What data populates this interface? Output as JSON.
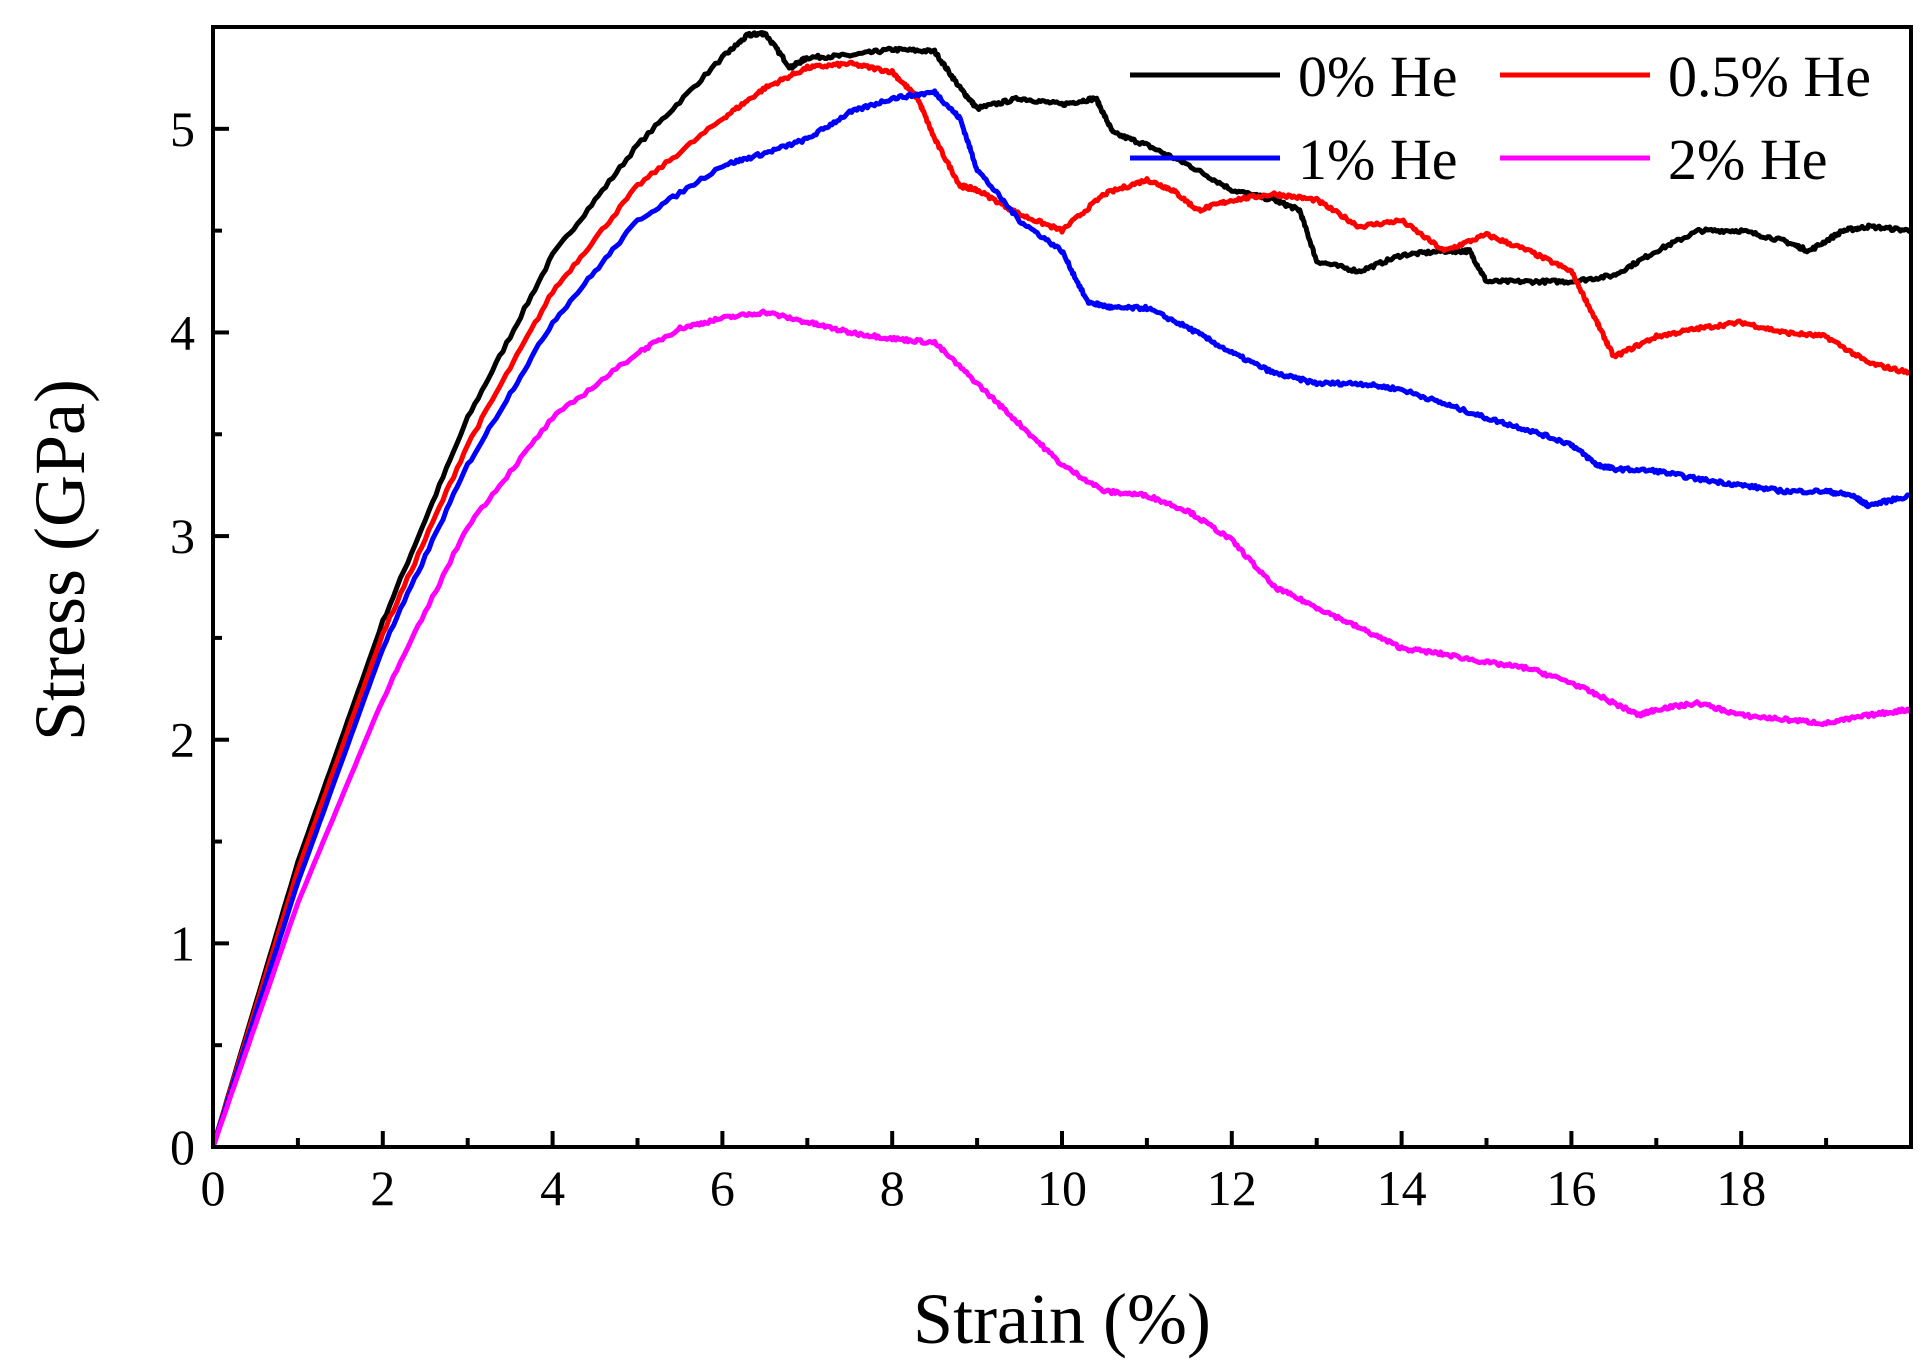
{
  "chart_data": {
    "type": "line",
    "title": "",
    "xlabel": "Strain (%)",
    "ylabel": "Stress (GPa)",
    "xlim": [
      0,
      20
    ],
    "ylim": [
      0,
      5.5
    ],
    "xticks": [
      0,
      2,
      4,
      6,
      8,
      10,
      12,
      14,
      16,
      18
    ],
    "yticks": [
      0,
      1,
      2,
      3,
      4,
      5
    ],
    "grid": false,
    "legend_position": "top-right",
    "series": [
      {
        "name": "0% He",
        "color": "#000000",
        "points": [
          [
            0,
            0
          ],
          [
            1,
            1.4
          ],
          [
            2,
            2.58
          ],
          [
            3,
            3.58
          ],
          [
            4,
            4.38
          ],
          [
            5,
            4.92
          ],
          [
            6,
            5.35
          ],
          [
            6.3,
            5.46
          ],
          [
            6.5,
            5.47
          ],
          [
            6.8,
            5.3
          ],
          [
            7.0,
            5.35
          ],
          [
            7.5,
            5.36
          ],
          [
            8.0,
            5.39
          ],
          [
            8.5,
            5.38
          ],
          [
            8.8,
            5.2
          ],
          [
            9.0,
            5.1
          ],
          [
            9.5,
            5.15
          ],
          [
            10.0,
            5.12
          ],
          [
            10.4,
            5.15
          ],
          [
            10.6,
            4.98
          ],
          [
            11.0,
            4.92
          ],
          [
            11.5,
            4.82
          ],
          [
            12.0,
            4.7
          ],
          [
            12.5,
            4.65
          ],
          [
            12.8,
            4.6
          ],
          [
            13.0,
            4.35
          ],
          [
            13.5,
            4.3
          ],
          [
            14.0,
            4.38
          ],
          [
            14.5,
            4.4
          ],
          [
            14.8,
            4.4
          ],
          [
            15.0,
            4.25
          ],
          [
            15.5,
            4.25
          ],
          [
            16.0,
            4.25
          ],
          [
            16.5,
            4.28
          ],
          [
            17.0,
            4.4
          ],
          [
            17.5,
            4.5
          ],
          [
            18.0,
            4.5
          ],
          [
            18.5,
            4.45
          ],
          [
            18.8,
            4.4
          ],
          [
            19.2,
            4.5
          ],
          [
            19.5,
            4.52
          ],
          [
            20.0,
            4.5
          ]
        ]
      },
      {
        "name": "0.5% He",
        "color": "#ff0000",
        "points": [
          [
            0,
            0
          ],
          [
            1,
            1.36
          ],
          [
            2,
            2.52
          ],
          [
            3,
            3.45
          ],
          [
            4,
            4.2
          ],
          [
            5,
            4.72
          ],
          [
            6,
            5.05
          ],
          [
            6.5,
            5.2
          ],
          [
            7.0,
            5.3
          ],
          [
            7.5,
            5.32
          ],
          [
            8.0,
            5.28
          ],
          [
            8.3,
            5.15
          ],
          [
            8.5,
            4.95
          ],
          [
            8.8,
            4.72
          ],
          [
            9.0,
            4.7
          ],
          [
            9.5,
            4.58
          ],
          [
            10.0,
            4.5
          ],
          [
            10.5,
            4.68
          ],
          [
            11.0,
            4.75
          ],
          [
            11.3,
            4.7
          ],
          [
            11.6,
            4.6
          ],
          [
            12.0,
            4.65
          ],
          [
            12.5,
            4.68
          ],
          [
            13.0,
            4.65
          ],
          [
            13.5,
            4.52
          ],
          [
            14.0,
            4.55
          ],
          [
            14.5,
            4.4
          ],
          [
            15.0,
            4.48
          ],
          [
            15.5,
            4.4
          ],
          [
            16.0,
            4.3
          ],
          [
            16.3,
            4.05
          ],
          [
            16.5,
            3.88
          ],
          [
            17.0,
            3.98
          ],
          [
            17.5,
            4.02
          ],
          [
            18.0,
            4.05
          ],
          [
            18.5,
            4.0
          ],
          [
            19.0,
            3.98
          ],
          [
            19.5,
            3.85
          ],
          [
            20.0,
            3.8
          ]
        ]
      },
      {
        "name": "1% He",
        "color": "#0000ff",
        "points": [
          [
            0,
            0
          ],
          [
            1,
            1.3
          ],
          [
            2,
            2.45
          ],
          [
            3,
            3.35
          ],
          [
            4,
            4.05
          ],
          [
            5,
            4.55
          ],
          [
            6,
            4.82
          ],
          [
            6.5,
            4.88
          ],
          [
            7.0,
            4.95
          ],
          [
            7.5,
            5.08
          ],
          [
            8.0,
            5.15
          ],
          [
            8.5,
            5.18
          ],
          [
            8.8,
            5.05
          ],
          [
            9.0,
            4.8
          ],
          [
            9.5,
            4.55
          ],
          [
            10.0,
            4.4
          ],
          [
            10.3,
            4.15
          ],
          [
            10.6,
            4.12
          ],
          [
            11.0,
            4.12
          ],
          [
            11.5,
            4.02
          ],
          [
            12.0,
            3.9
          ],
          [
            12.5,
            3.8
          ],
          [
            13.0,
            3.75
          ],
          [
            13.5,
            3.75
          ],
          [
            14.0,
            3.72
          ],
          [
            14.5,
            3.65
          ],
          [
            15.0,
            3.58
          ],
          [
            15.5,
            3.52
          ],
          [
            16.0,
            3.45
          ],
          [
            16.3,
            3.35
          ],
          [
            16.5,
            3.33
          ],
          [
            17.0,
            3.32
          ],
          [
            17.5,
            3.28
          ],
          [
            18.0,
            3.25
          ],
          [
            18.5,
            3.22
          ],
          [
            19.0,
            3.22
          ],
          [
            19.3,
            3.2
          ],
          [
            19.5,
            3.15
          ],
          [
            20.0,
            3.2
          ]
        ]
      },
      {
        "name": "2% He",
        "color": "#ff00ff",
        "points": [
          [
            0,
            0
          ],
          [
            1,
            1.2
          ],
          [
            2,
            2.2
          ],
          [
            3,
            3.05
          ],
          [
            4,
            3.58
          ],
          [
            5,
            3.9
          ],
          [
            5.5,
            4.02
          ],
          [
            6.0,
            4.07
          ],
          [
            6.5,
            4.1
          ],
          [
            7.0,
            4.05
          ],
          [
            7.5,
            4.0
          ],
          [
            8.0,
            3.97
          ],
          [
            8.5,
            3.95
          ],
          [
            9.0,
            3.75
          ],
          [
            9.5,
            3.55
          ],
          [
            10.0,
            3.35
          ],
          [
            10.5,
            3.22
          ],
          [
            11.0,
            3.2
          ],
          [
            11.5,
            3.12
          ],
          [
            12.0,
            2.98
          ],
          [
            12.5,
            2.75
          ],
          [
            13.0,
            2.65
          ],
          [
            13.5,
            2.55
          ],
          [
            14.0,
            2.45
          ],
          [
            14.5,
            2.42
          ],
          [
            15.0,
            2.38
          ],
          [
            15.5,
            2.35
          ],
          [
            16.0,
            2.28
          ],
          [
            16.5,
            2.18
          ],
          [
            16.8,
            2.12
          ],
          [
            17.0,
            2.15
          ],
          [
            17.5,
            2.18
          ],
          [
            18.0,
            2.12
          ],
          [
            18.5,
            2.1
          ],
          [
            19.0,
            2.08
          ],
          [
            19.5,
            2.12
          ],
          [
            20.0,
            2.15
          ]
        ]
      }
    ]
  }
}
